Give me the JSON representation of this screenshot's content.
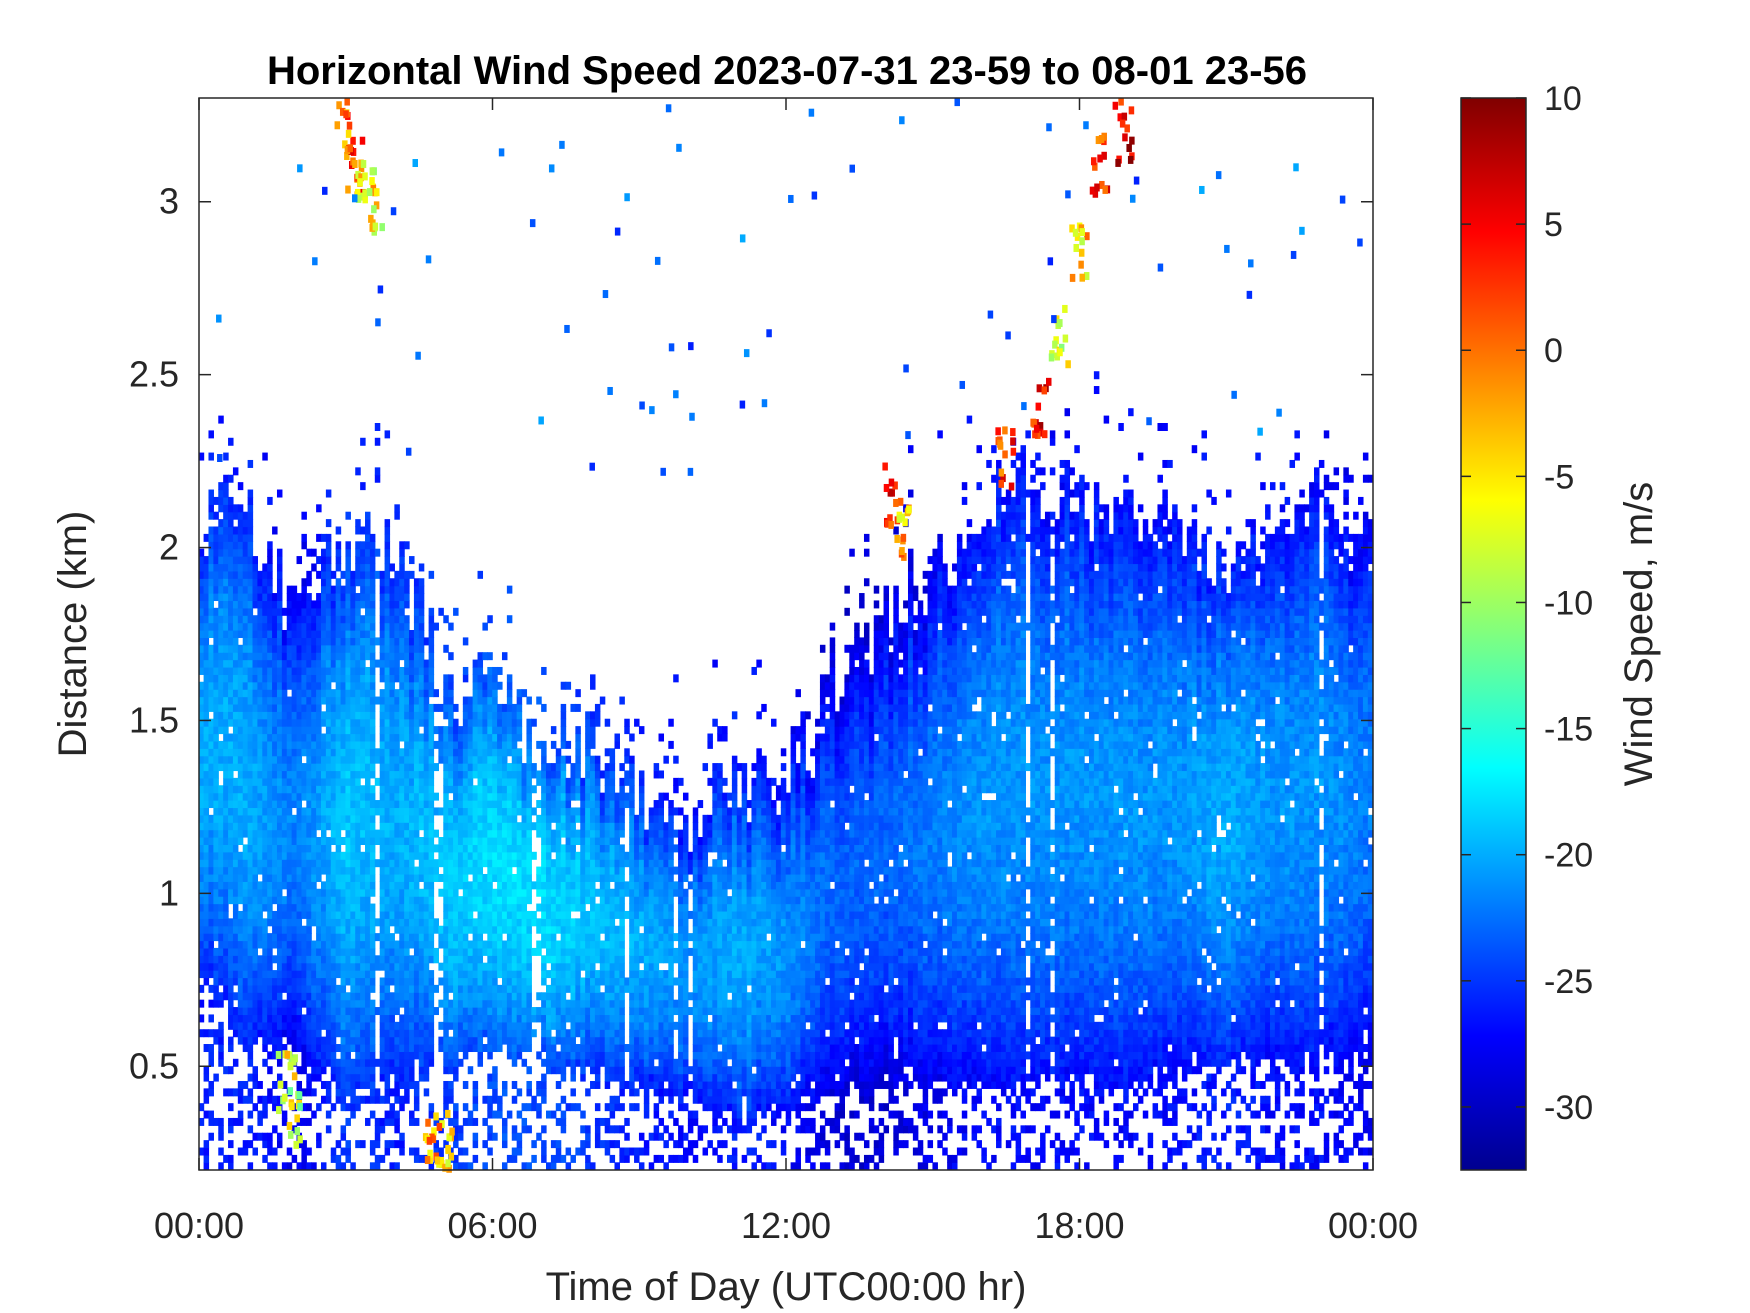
{
  "chart_data": {
    "type": "heatmap",
    "title": "Horizontal Wind Speed 2023-07-31 23-59 to 08-01 23-56",
    "xlabel": "Time of Day (UTC00:00 hr)",
    "ylabel": "Distance (km)",
    "xlim": [
      0,
      24
    ],
    "ylim": [
      0.2,
      3.3
    ],
    "x_tick_labels": [
      "00:00",
      "06:00",
      "12:00",
      "18:00",
      "00:00"
    ],
    "y_tick_labels": [
      "0.5",
      "1",
      "1.5",
      "2",
      "2.5",
      "3"
    ],
    "colorbar": {
      "label": "Wind Speed, m/s",
      "range": [
        -32.5,
        10
      ],
      "tick_labels": [
        "10",
        "5",
        "0",
        "-5",
        "-10",
        "-15",
        "-20",
        "-25",
        "-30"
      ],
      "colormap": "jet"
    },
    "profile": {
      "hours": [
        0,
        1,
        2,
        3,
        4,
        5,
        6,
        7,
        8,
        9,
        10,
        11,
        12,
        13,
        14,
        15,
        16,
        17,
        18,
        19,
        20,
        21,
        22,
        23,
        24
      ],
      "top_km": [
        2.1,
        2.1,
        1.8,
        2.0,
        2.0,
        1.6,
        1.6,
        1.45,
        1.4,
        1.3,
        1.2,
        1.3,
        1.3,
        1.6,
        1.8,
        1.9,
        2.1,
        2.2,
        2.1,
        2.1,
        2.0,
        1.9,
        2.1,
        2.1,
        2.0
      ],
      "bottom_km": [
        0.8,
        0.55,
        0.55,
        0.4,
        0.45,
        0.5,
        0.55,
        0.5,
        0.5,
        0.45,
        0.4,
        0.35,
        0.35,
        0.4,
        0.45,
        0.45,
        0.45,
        0.45,
        0.45,
        0.45,
        0.5,
        0.5,
        0.5,
        0.5,
        0.55
      ],
      "core_speed_ms": [
        -20,
        -20,
        -22,
        -19,
        -20,
        -19,
        -18,
        -18,
        -19,
        -20,
        -21,
        -20,
        -21,
        -23,
        -23,
        -22,
        -21,
        -21,
        -21,
        -21,
        -21,
        -20,
        -21,
        -21,
        -22
      ]
    },
    "plumes": [
      {
        "hours": [
          16.5,
          17.2,
          17.6,
          18.0,
          18.4,
          18.9
        ],
        "height_km": [
          2.25,
          2.4,
          2.6,
          2.85,
          3.1,
          3.2
        ],
        "speed_ms": [
          2,
          4,
          -8,
          -4,
          3,
          6
        ]
      },
      {
        "hours": [
          3.0,
          3.2,
          3.4,
          3.6
        ],
        "height_km": [
          3.2,
          3.1,
          3.05,
          3.0
        ],
        "speed_ms": [
          0,
          2,
          -5,
          -6
        ]
      },
      {
        "hours": [
          14.2,
          14.4
        ],
        "height_km": [
          2.15,
          2.05
        ],
        "speed_ms": [
          4,
          -3
        ]
      },
      {
        "hours": [
          4.8,
          5.0
        ],
        "height_km": [
          0.25,
          0.28
        ],
        "speed_ms": [
          -2,
          -5
        ]
      },
      {
        "hours": [
          1.8,
          1.9
        ],
        "height_km": [
          0.45,
          0.35
        ],
        "speed_ms": [
          -6,
          -8
        ]
      }
    ]
  }
}
